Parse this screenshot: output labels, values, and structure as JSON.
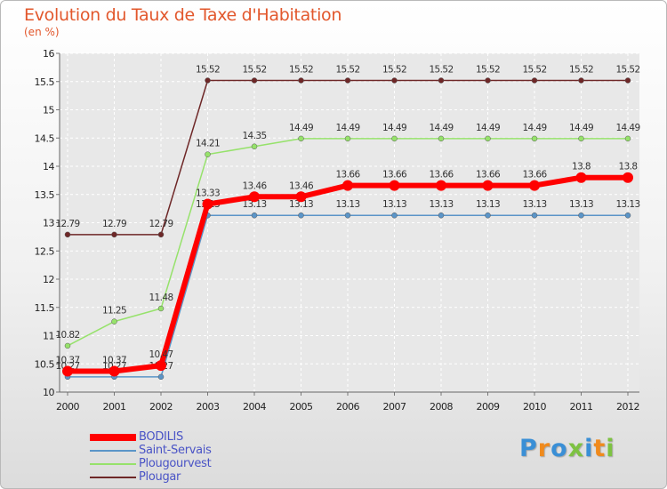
{
  "chart_data": {
    "type": "line",
    "title": "Evolution du Taux de Taxe d'Habitation",
    "subtitle": "(en %)",
    "categories": [
      "2000",
      "2001",
      "2002",
      "2003",
      "2004",
      "2005",
      "2006",
      "2007",
      "2008",
      "2009",
      "2010",
      "2011",
      "2012"
    ],
    "ylim": [
      10,
      16
    ],
    "yticks": [
      "10",
      "10.5",
      "11",
      "11.5",
      "12",
      "12.5",
      "13",
      "13.5",
      "14",
      "14.5",
      "15",
      "15.5",
      "16"
    ],
    "grid": true,
    "legend_position": "bottom-left",
    "series": [
      {
        "name": "Plougar",
        "color": "#6e2727",
        "values": [
          12.79,
          12.79,
          12.79,
          15.52,
          15.52,
          15.52,
          15.52,
          15.52,
          15.52,
          15.52,
          15.52,
          15.52,
          15.52
        ],
        "labels": [
          "12.79",
          "12.79",
          "12.79",
          "15.52",
          "15.52",
          "15.52",
          "15.52",
          "15.52",
          "15.52",
          "15.52",
          "15.52",
          "15.52",
          "15.52"
        ]
      },
      {
        "name": "Plougourvest",
        "color": "#96e26b",
        "values": [
          10.82,
          11.25,
          11.48,
          14.21,
          14.35,
          14.49,
          14.49,
          14.49,
          14.49,
          14.49,
          14.49,
          14.49,
          14.49
        ],
        "labels": [
          "10.82",
          "11.25",
          "11.48",
          "14.21",
          "14.35",
          "14.49",
          "14.49",
          "14.49",
          "14.49",
          "14.49",
          "14.49",
          "14.49",
          "14.49"
        ]
      },
      {
        "name": "Saint-Servais",
        "color": "#5b95c8",
        "values": [
          10.27,
          10.27,
          10.27,
          13.13,
          13.13,
          13.13,
          13.13,
          13.13,
          13.13,
          13.13,
          13.13,
          13.13,
          13.13
        ],
        "labels": [
          "10.27",
          "10.27",
          "10.27",
          "13.13",
          "13.13",
          "13.13",
          "13.13",
          "13.13",
          "13.13",
          "13.13",
          "13.13",
          "13.13",
          "13.13"
        ]
      },
      {
        "name": "BODILIS",
        "color": "#ff0000",
        "values": [
          10.37,
          10.37,
          10.47,
          13.33,
          13.46,
          13.46,
          13.66,
          13.66,
          13.66,
          13.66,
          13.66,
          13.8,
          13.8
        ],
        "labels": [
          "10.37",
          "10.37",
          "10.47",
          "13.33",
          "13.46",
          "13.46",
          "13.66",
          "13.66",
          "13.66",
          "13.66",
          "13.66",
          "13.8",
          "13.8"
        ]
      }
    ],
    "legend_order": [
      "BODILIS",
      "Saint-Servais",
      "Plougourvest",
      "Plougar"
    ]
  },
  "brand": {
    "text": "Proxiti",
    "colors": [
      "#3a8fd6",
      "#f08a1c",
      "#3a8fd6",
      "#7dc242",
      "#3a8fd6",
      "#f08a1c",
      "#7dc242"
    ]
  }
}
